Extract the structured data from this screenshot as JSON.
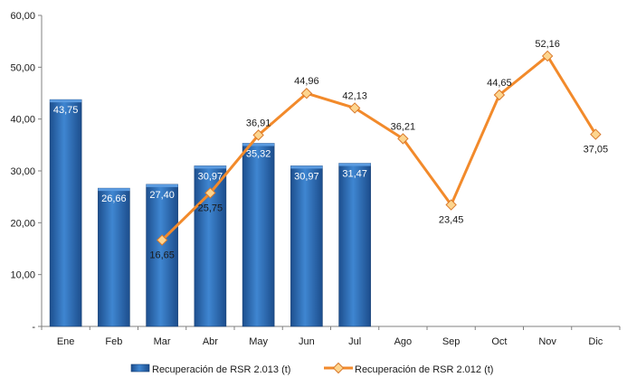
{
  "chart_data": {
    "type": "bar",
    "categories": [
      "Ene",
      "Feb",
      "Mar",
      "Abr",
      "May",
      "Jun",
      "Jul",
      "Ago",
      "Sep",
      "Oct",
      "Nov",
      "Dic"
    ],
    "y_ticks": [
      "-",
      "10,00",
      "20,00",
      "30,00",
      "40,00",
      "50,00",
      "60,00"
    ],
    "ylim": [
      0,
      60
    ],
    "grid": false,
    "legend_position": "bottom",
    "series": [
      {
        "name": "Recuperación de RSR 2.013 (t)",
        "type": "bar",
        "color": "#2e6eb5",
        "values": [
          43.75,
          26.66,
          27.4,
          30.97,
          35.32,
          30.97,
          31.47,
          null,
          null,
          null,
          null,
          null
        ],
        "labels": [
          "43,75",
          "26,66",
          "27,40",
          "30,97",
          "35,32",
          "30,97",
          "31,47",
          null,
          null,
          null,
          null,
          null
        ]
      },
      {
        "name": "Recuperación de RSR 2.012 (t)",
        "type": "line",
        "color": "#f28a2b",
        "marker_color": "#fdd58f",
        "values": [
          null,
          null,
          16.65,
          25.75,
          36.91,
          44.96,
          42.13,
          36.21,
          23.45,
          44.65,
          52.16,
          37.05
        ],
        "labels": [
          null,
          null,
          "16,65",
          "25,75",
          "36,91",
          "44,96",
          "42,13",
          "36,21",
          "23,45",
          "44,65",
          "52,16",
          "37,05"
        ]
      }
    ]
  }
}
